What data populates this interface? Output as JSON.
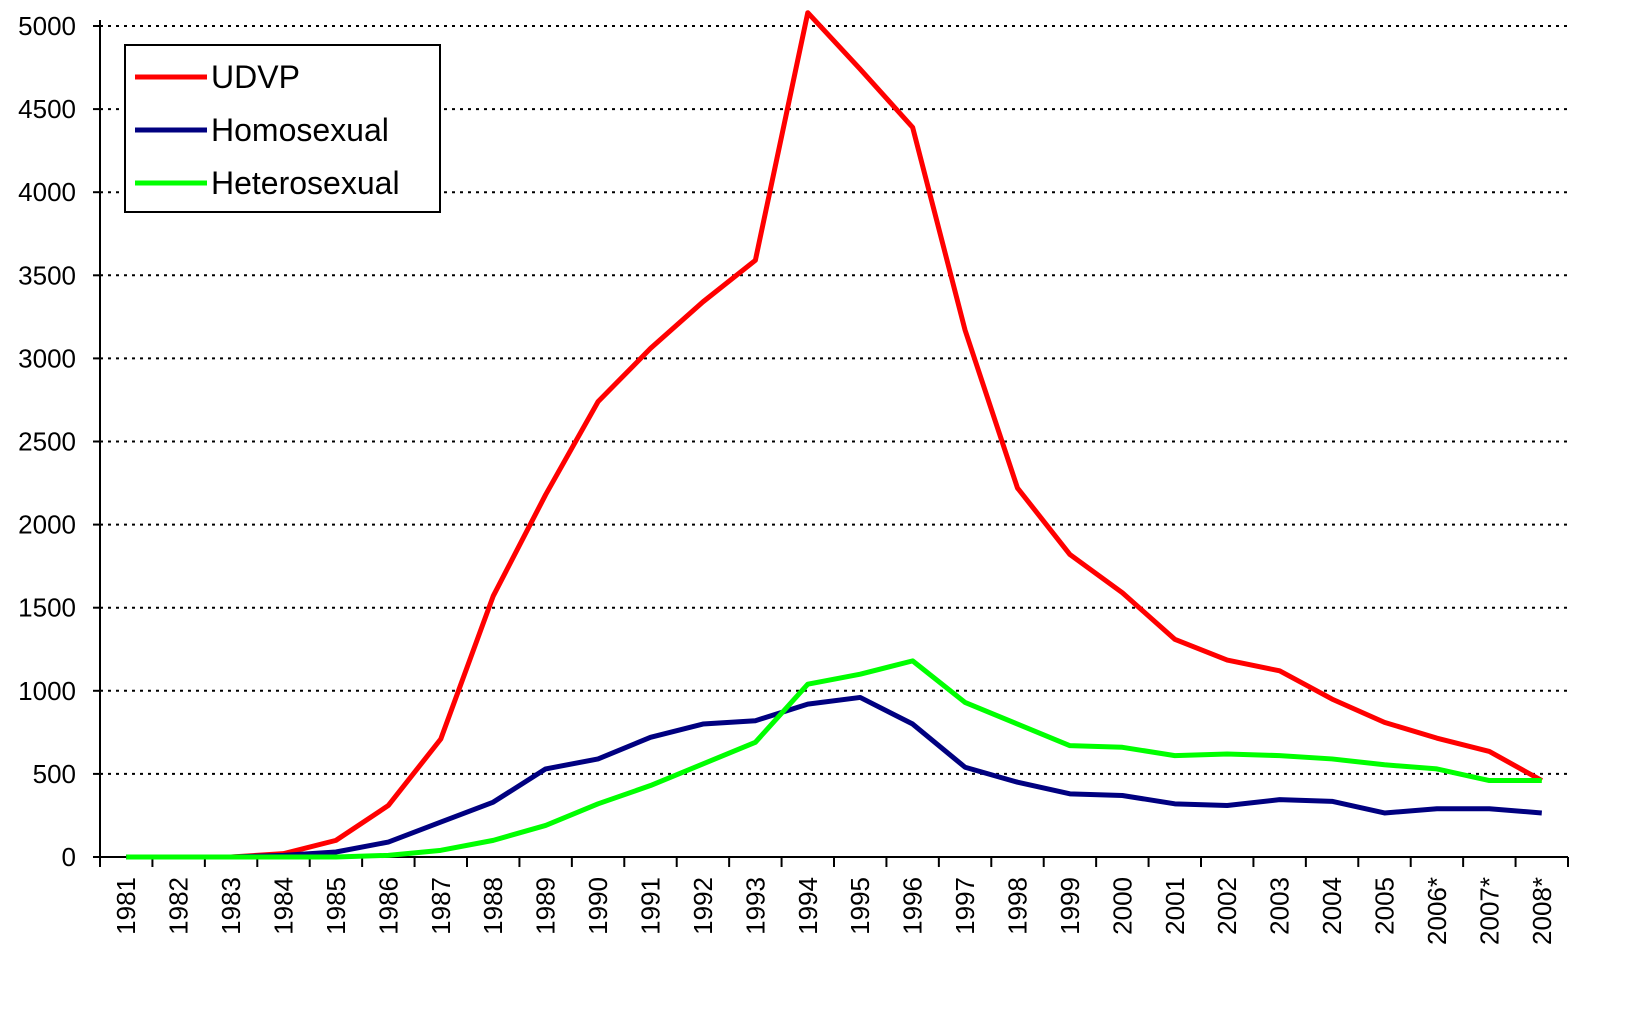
{
  "chart_data": {
    "type": "line",
    "categories": [
      "1981",
      "1982",
      "1983",
      "1984",
      "1985",
      "1986",
      "1987",
      "1988",
      "1989",
      "1990",
      "1991",
      "1992",
      "1993",
      "1994",
      "1995",
      "1996",
      "1997",
      "1998",
      "1999",
      "2000",
      "2001",
      "2002",
      "2003",
      "2004",
      "2005",
      "2006*",
      "2007*",
      "2008*"
    ],
    "series": [
      {
        "name": "UDVP",
        "color": "#ff0000",
        "values": [
          0,
          0,
          0,
          20,
          100,
          310,
          710,
          1570,
          2180,
          2740,
          3060,
          3340,
          3590,
          5080,
          4740,
          4390,
          3170,
          2220,
          1820,
          1590,
          1310,
          1185,
          1120,
          950,
          810,
          715,
          635,
          460
        ]
      },
      {
        "name": "Homosexual",
        "color": "#000080",
        "values": [
          0,
          0,
          0,
          10,
          30,
          90,
          210,
          330,
          530,
          590,
          720,
          800,
          820,
          920,
          960,
          800,
          540,
          450,
          380,
          370,
          320,
          310,
          345,
          335,
          265,
          290,
          290,
          265
        ]
      },
      {
        "name": "Heterosexual",
        "color": "#00ff00",
        "values": [
          0,
          0,
          0,
          0,
          0,
          10,
          40,
          100,
          190,
          320,
          430,
          560,
          690,
          1040,
          1100,
          1180,
          930,
          800,
          670,
          660,
          610,
          620,
          610,
          590,
          555,
          530,
          460,
          460
        ]
      }
    ],
    "ylim": [
      0,
      5000
    ],
    "yticks": [
      0,
      500,
      1000,
      1500,
      2000,
      2500,
      3000,
      3500,
      4000,
      4500,
      5000
    ],
    "grid": true,
    "legend": "upper left"
  }
}
